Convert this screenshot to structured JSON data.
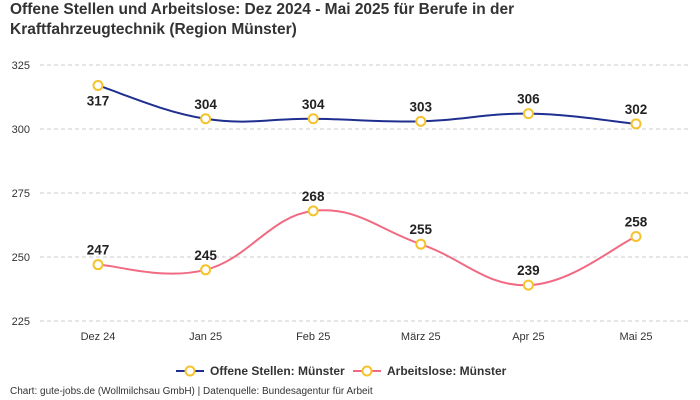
{
  "chart_data": {
    "type": "line",
    "title": "Offene Stellen und Arbeitslose: Dez 2024 - Mai 2025 für Berufe in der Kraftfahrzeugtechnik (Region Münster)",
    "xlabel": "",
    "ylabel": "",
    "categories": [
      "Dez 24",
      "Jan 25",
      "Feb 25",
      "März 25",
      "Apr 25",
      "Mai 25"
    ],
    "ylim": [
      225,
      325
    ],
    "yticks": [
      225,
      250,
      275,
      300,
      325
    ],
    "grid": true,
    "legend_position": "bottom-center",
    "series": [
      {
        "name": "Offene Stellen: Münster",
        "color": "#1f2f8f",
        "marker_color": "#f5c32c",
        "values": [
          317,
          304,
          304,
          303,
          306,
          302
        ]
      },
      {
        "name": "Arbeitslose: Münster",
        "color": "#f06a82",
        "marker_color": "#f5c32c",
        "values": [
          247,
          245,
          268,
          255,
          239,
          258
        ]
      }
    ]
  },
  "credits": "Chart: gute-jobs.de (Wollmilchsau GmbH) | Datenquelle: Bundesagentur für Arbeit"
}
